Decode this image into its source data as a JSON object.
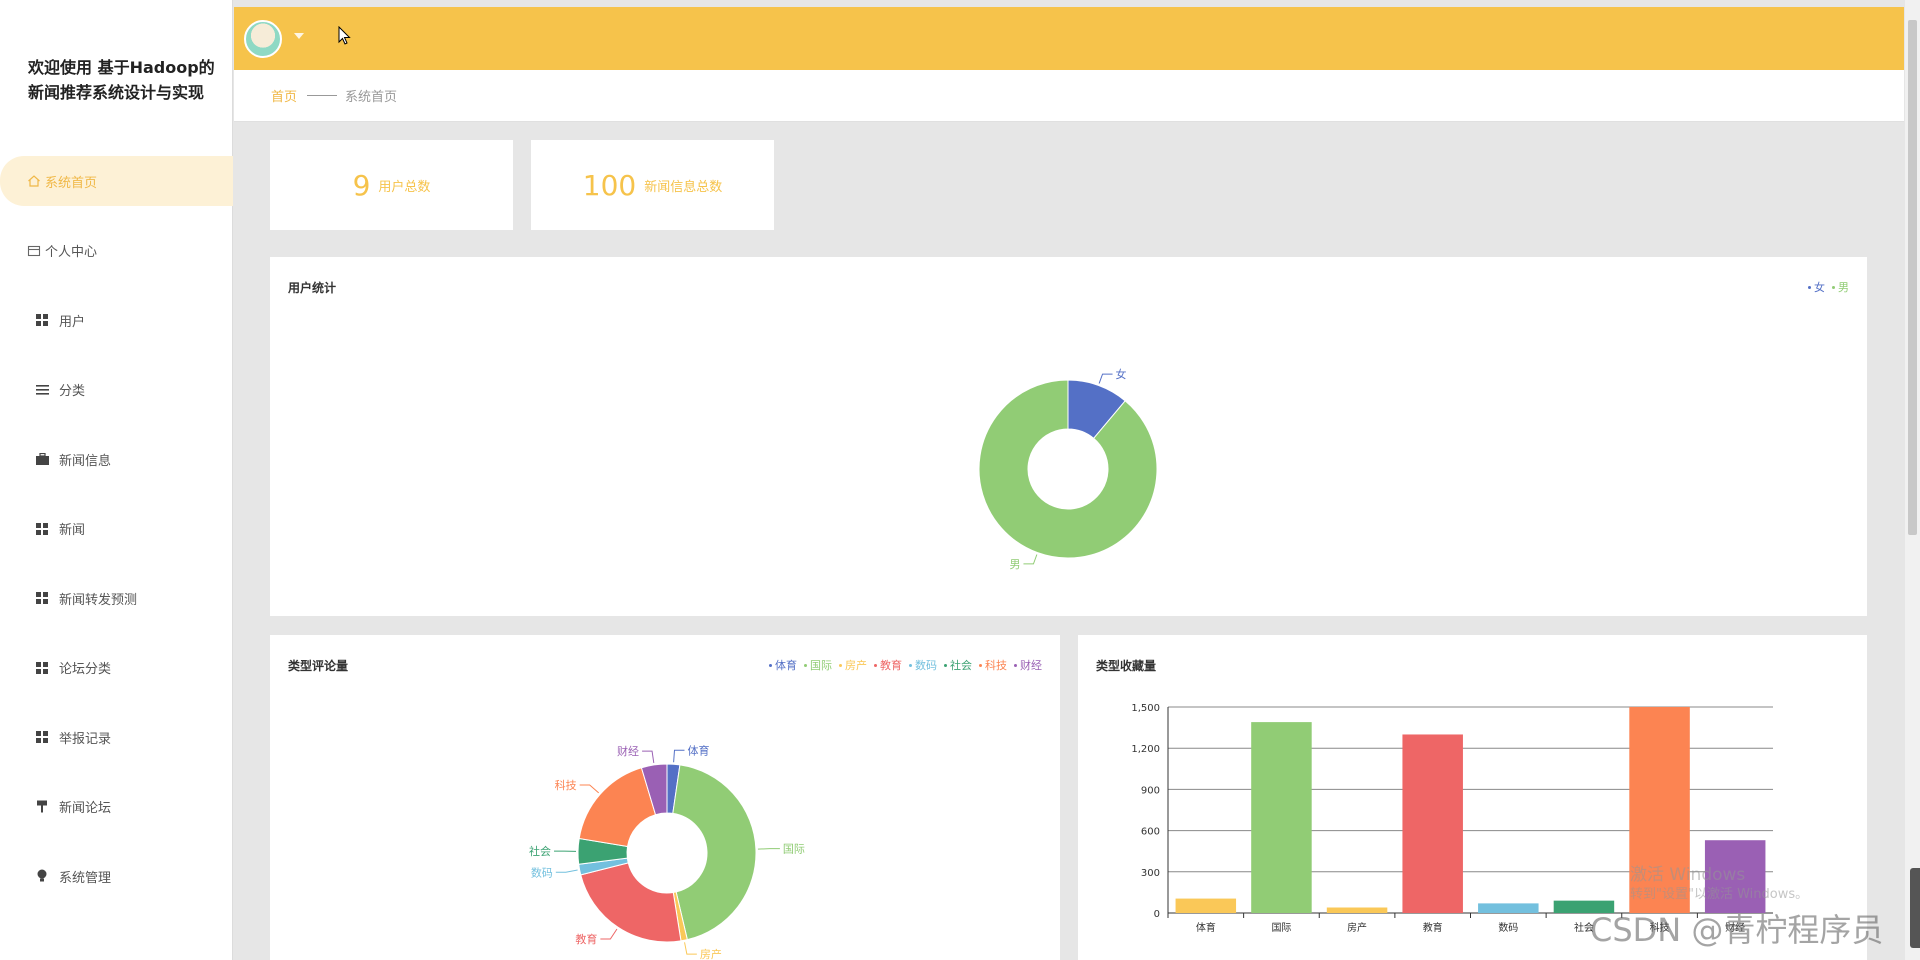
{
  "app": {
    "title": "欢迎使用 基于Hadoop的新闻推荐系统设计与实现"
  },
  "sidebar": {
    "items": [
      {
        "label": "系统首页",
        "icon": "home-icon",
        "active": true
      },
      {
        "label": "个人中心",
        "icon": "id-card-icon",
        "active": false
      },
      {
        "label": "用户",
        "icon": "grid-icon",
        "active": false
      },
      {
        "label": "分类",
        "icon": "list-icon",
        "active": false
      },
      {
        "label": "新闻信息",
        "icon": "briefcase-icon",
        "active": false
      },
      {
        "label": "新闻",
        "icon": "grid-icon",
        "active": false
      },
      {
        "label": "新闻转发预测",
        "icon": "grid-icon",
        "active": false
      },
      {
        "label": "论坛分类",
        "icon": "grid-icon",
        "active": false
      },
      {
        "label": "举报记录",
        "icon": "grid-icon",
        "active": false
      },
      {
        "label": "新闻论坛",
        "icon": "flag-icon",
        "active": false
      },
      {
        "label": "系统管理",
        "icon": "bulb-icon",
        "active": false
      }
    ]
  },
  "breadcrumb": {
    "home": "首页",
    "current": "系统首页"
  },
  "stats": [
    {
      "value": "9",
      "label": "用户总数"
    },
    {
      "value": "100",
      "label": "新闻信息总数"
    }
  ],
  "colors": {
    "accent": "#f6c34b",
    "blue": "#5470c6",
    "green": "#91cc75",
    "yellow": "#fac858",
    "red": "#ee6666",
    "cyan": "#73c0de",
    "teal": "#3ba272",
    "orange": "#fc8452",
    "purple": "#9a60b4"
  },
  "chart_data": [
    {
      "type": "pie",
      "title": "用户统计",
      "donut": true,
      "legend_position": "top-right",
      "categories": [
        "女",
        "男"
      ],
      "values": [
        1,
        8
      ],
      "colors": [
        "#5470c6",
        "#91cc75"
      ]
    },
    {
      "type": "pie",
      "title": "类型评论量",
      "donut": true,
      "legend_position": "top-right",
      "categories": [
        "体育",
        "国际",
        "房产",
        "教育",
        "数码",
        "社会",
        "科技",
        "财经"
      ],
      "values": [
        30,
        570,
        15,
        305,
        25,
        60,
        230,
        60
      ],
      "colors": [
        "#5470c6",
        "#91cc75",
        "#fac858",
        "#ee6666",
        "#73c0de",
        "#3ba272",
        "#fc8452",
        "#9a60b4"
      ]
    },
    {
      "type": "bar",
      "title": "类型收藏量",
      "categories": [
        "体育",
        "国际",
        "房产",
        "教育",
        "数码",
        "社会",
        "科技",
        "财经"
      ],
      "values": [
        105,
        1390,
        40,
        1300,
        70,
        90,
        1500,
        530
      ],
      "colors": [
        "#fac858",
        "#91cc75",
        "#fac858",
        "#ee6666",
        "#73c0de",
        "#3ba272",
        "#fc8452",
        "#9a60b4"
      ],
      "ylim": [
        0,
        1500
      ],
      "yticks": [
        "0",
        "300",
        "600",
        "900",
        "1,200",
        "1,500"
      ],
      "grid": true
    }
  ],
  "overlay": {
    "watermark": "CSDN @青柠程序员",
    "activate_line1": "激活 Windows",
    "activate_line2": "转到\"设置\"以激活 Windows。"
  }
}
